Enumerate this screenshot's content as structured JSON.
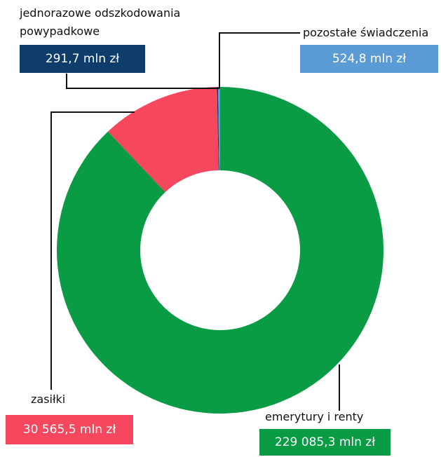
{
  "chart_data": {
    "type": "donut",
    "categories": [
      "emerytury i renty",
      "zasiłki",
      "jednorazowe odszkodowania powypadkowe",
      "pozostałe świadczenia"
    ],
    "values": [
      229085.3,
      30565.5,
      291.7,
      524.8
    ],
    "value_labels": [
      "229 085,3 mln zł",
      "30 565,5 mln zł",
      "291,7 mln zł",
      "524,8 mln zł"
    ],
    "colors": [
      "#0a9b45",
      "#f5485e",
      "#0f3d6b",
      "#5b9bd5"
    ]
  }
}
